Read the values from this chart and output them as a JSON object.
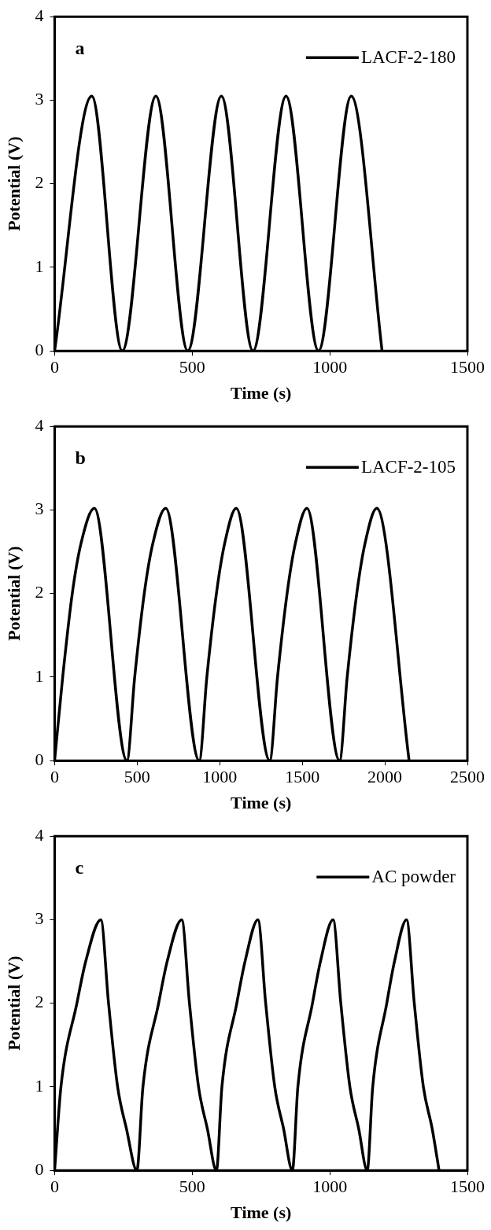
{
  "chart_data": [
    {
      "type": "line",
      "xlabel": "Time (s)",
      "ylabel": "Potential (V)",
      "annotations": [
        "a"
      ],
      "legend": "top right",
      "marker": "none",
      "line_style": "solid",
      "xlim": [
        0,
        1500
      ],
      "xticks": [
        0,
        500,
        1000,
        1500
      ],
      "ylim": [
        0,
        4
      ],
      "yticks": [
        0,
        1,
        2,
        3,
        4
      ],
      "series": [
        {
          "name": "LACF-2-180",
          "color": "#000000",
          "x": [
            0,
            135,
            246,
            368,
            484,
            606,
            721,
            841,
            959,
            1078,
            1190
          ],
          "values": [
            0,
            3.05,
            0,
            3.05,
            0,
            3.05,
            0,
            3.05,
            0,
            3.05,
            0
          ]
        }
      ]
    },
    {
      "type": "line",
      "xlabel": "Time (s)",
      "ylabel": "Potential (V)",
      "annotations": [
        "b"
      ],
      "legend": "top right",
      "marker": "none",
      "line_style": "solid",
      "xlim": [
        0,
        2500
      ],
      "xticks": [
        0,
        500,
        1000,
        1500,
        2000,
        2500
      ],
      "ylim": [
        0,
        4
      ],
      "yticks": [
        0,
        1,
        2,
        3,
        4
      ],
      "series": [
        {
          "name": "LACF-2-105",
          "color": "#000000",
          "x": [
            0,
            49,
            107,
            160,
            241,
            438,
            485,
            543,
            595,
            673,
            876,
            922,
            980,
            1030,
            1100,
            1303,
            1350,
            1408,
            1458,
            1528,
            1726,
            1772,
            1830,
            1880,
            1951,
            2147
          ],
          "values": [
            0,
            1,
            2,
            2.6,
            3.02,
            0,
            1,
            2,
            2.6,
            3.02,
            0,
            1,
            2,
            2.6,
            3.02,
            0,
            1,
            2,
            2.6,
            3.02,
            0,
            1,
            2,
            2.6,
            3.02,
            0
          ]
        }
      ]
    },
    {
      "type": "line",
      "xlabel": "Time (s)",
      "ylabel": "Potential (V)",
      "annotations": [
        "c"
      ],
      "legend": "top right",
      "marker": "none",
      "line_style": "solid",
      "xlim": [
        0,
        1500
      ],
      "xticks": [
        0,
        500,
        1000,
        1500
      ],
      "ylim": [
        0,
        4
      ],
      "yticks": [
        0,
        1,
        2,
        3,
        4
      ],
      "series": [
        {
          "name": "AC powder",
          "color": "#000000",
          "x": [
            0,
            23,
            81,
            113,
            168,
            196,
            229,
            261,
            299,
            321,
            378,
            409,
            462,
            490,
            523,
            555,
            588,
            608,
            662,
            692,
            739,
            767,
            800,
            832,
            864,
            884,
            937,
            966,
            1012,
            1040,
            1073,
            1105,
            1136,
            1156,
            1207,
            1235,
            1279,
            1307,
            1340,
            1372,
            1397
          ],
          "values": [
            0,
            1,
            2,
            2.5,
            3,
            2,
            1,
            0.5,
            0,
            1,
            2,
            2.5,
            3,
            2,
            1,
            0.5,
            0,
            1,
            2,
            2.5,
            3,
            2,
            1,
            0.5,
            0,
            1,
            2,
            2.5,
            3,
            2,
            1,
            0.5,
            0,
            1,
            2,
            2.5,
            3,
            2,
            1,
            0.5,
            0
          ]
        }
      ]
    }
  ]
}
